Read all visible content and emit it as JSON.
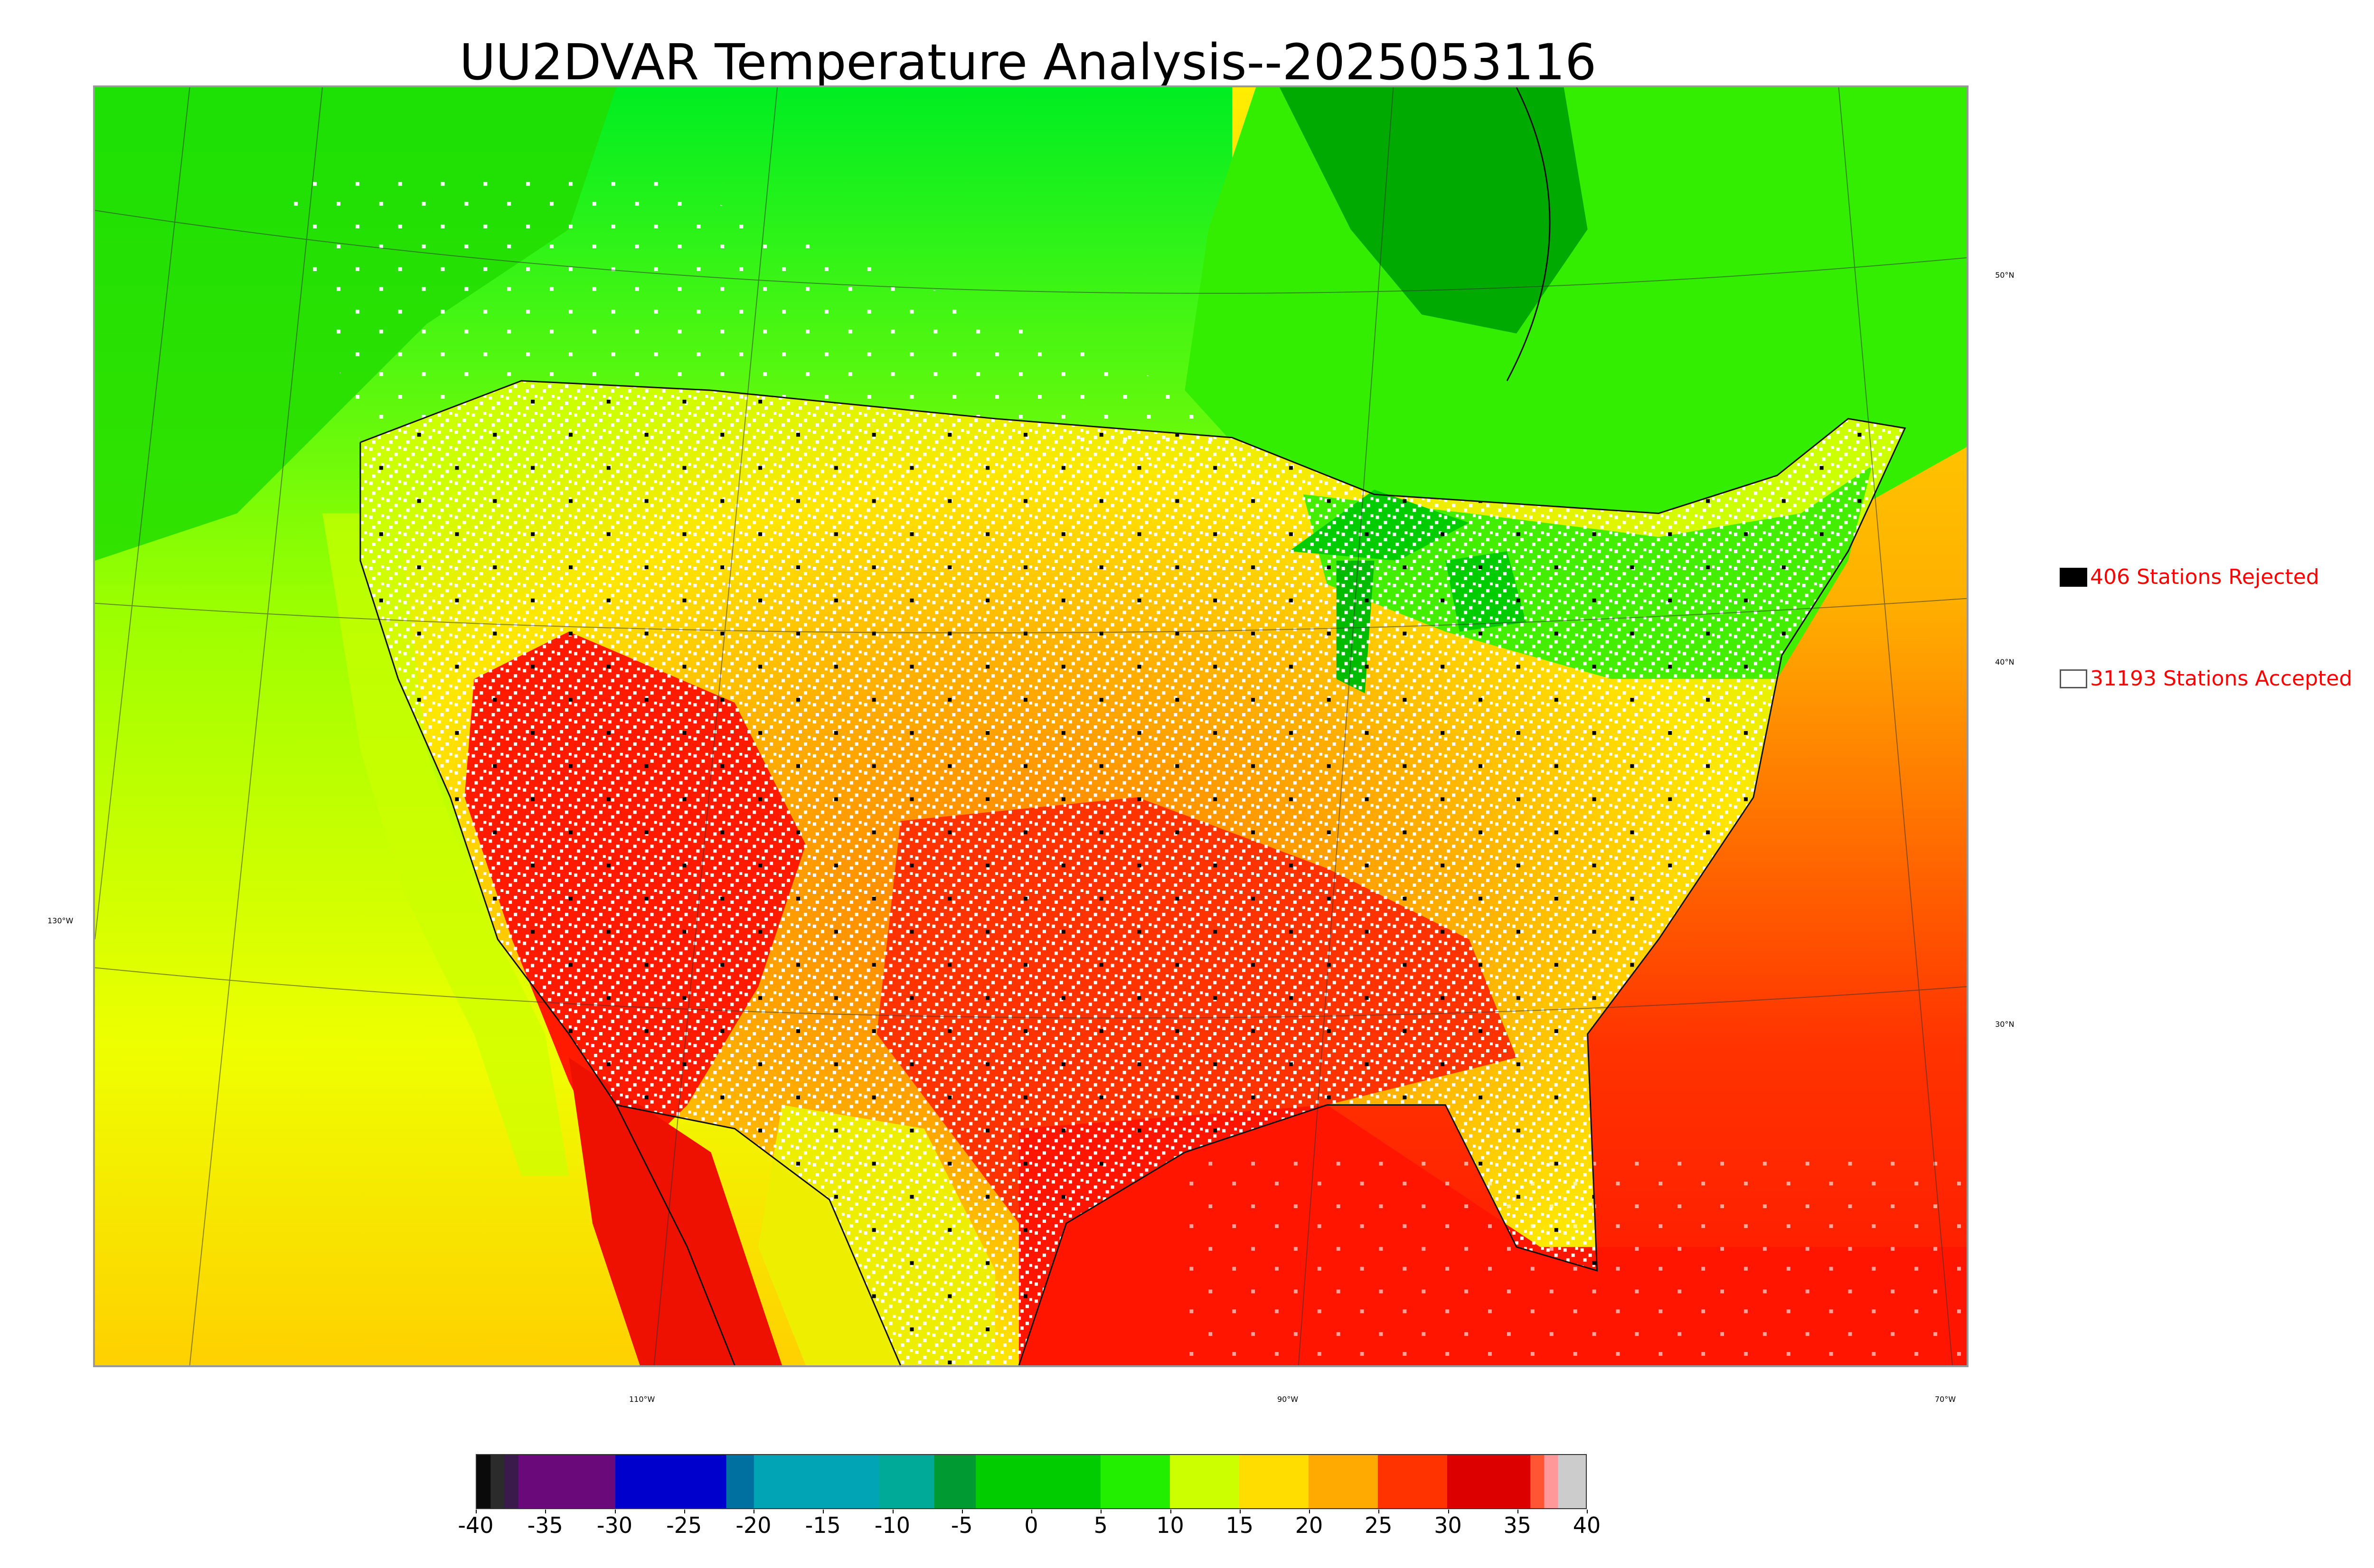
{
  "title": "UU2DVAR Temperature Analysis--2025053116",
  "map": {
    "lat_labels": [
      "50°N",
      "40°N",
      "30°N"
    ],
    "lon_labels": [
      "130°W",
      "110°W",
      "90°W",
      "70°W"
    ],
    "colors": {
      "cold_green": "#00e000",
      "lime": "#aaff00",
      "yellow": "#ffee00",
      "orange": "#ff9900",
      "red": "#ff1a00",
      "dark_green": "#00a000",
      "station_accepted": "#ffffff",
      "station_rejected": "#000000"
    }
  },
  "legend": {
    "rejected_label": "406 Stations Rejected",
    "accepted_label": "31193 Stations Accepted"
  },
  "colorbar": {
    "ticks": [
      "-40",
      "-35",
      "-30",
      "-25",
      "-20",
      "-15",
      "-10",
      "-5",
      "0",
      "5",
      "10",
      "15",
      "20",
      "25",
      "30",
      "35",
      "40"
    ],
    "stops": [
      {
        "from": -40,
        "to": -39,
        "color": "#0a0a0a"
      },
      {
        "from": -39,
        "to": -38,
        "color": "#2b2b2b"
      },
      {
        "from": -38,
        "to": -37,
        "color": "#3a1a4a"
      },
      {
        "from": -37,
        "to": -30,
        "color": "#6a0a7a"
      },
      {
        "from": -30,
        "to": -22,
        "color": "#0000cc"
      },
      {
        "from": -22,
        "to": -20,
        "color": "#0070a0"
      },
      {
        "from": -20,
        "to": -11,
        "color": "#00a4b4"
      },
      {
        "from": -11,
        "to": -7,
        "color": "#00aa99"
      },
      {
        "from": -7,
        "to": -4,
        "color": "#009a33"
      },
      {
        "from": -4,
        "to": 5,
        "color": "#00cc00"
      },
      {
        "from": 5,
        "to": 10,
        "color": "#22ee00"
      },
      {
        "from": 10,
        "to": 15,
        "color": "#ccff00"
      },
      {
        "from": 15,
        "to": 20,
        "color": "#ffdd00"
      },
      {
        "from": 20,
        "to": 25,
        "color": "#ffaa00"
      },
      {
        "from": 25,
        "to": 30,
        "color": "#ff3300"
      },
      {
        "from": 30,
        "to": 36,
        "color": "#dd0000"
      },
      {
        "from": 36,
        "to": 37,
        "color": "#ff5533"
      },
      {
        "from": 37,
        "to": 38,
        "color": "#ff9999"
      },
      {
        "from": 38,
        "to": 40,
        "color": "#cccccc"
      }
    ]
  }
}
